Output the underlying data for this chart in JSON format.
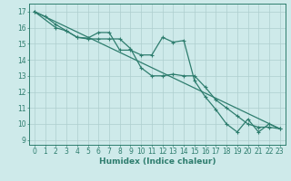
{
  "line_straight": {
    "x": [
      0,
      23
    ],
    "y": [
      17.0,
      9.7
    ],
    "color": "#2e7d6e",
    "marker": "None",
    "markersize": 0,
    "linewidth": 0.9
  },
  "line_upper": {
    "x": [
      0,
      1,
      2,
      3,
      4,
      5,
      6,
      7,
      8,
      9,
      10,
      11,
      12,
      13,
      14,
      15,
      16,
      17,
      18,
      19,
      20,
      21,
      22,
      23
    ],
    "y": [
      17.0,
      16.7,
      16.2,
      15.8,
      15.4,
      15.35,
      15.7,
      15.7,
      14.6,
      14.6,
      14.3,
      14.3,
      15.4,
      15.1,
      15.2,
      12.7,
      11.7,
      10.9,
      10.0,
      9.5,
      10.3,
      9.5,
      10.0,
      9.7
    ],
    "color": "#2e7d6e",
    "marker": "+",
    "markersize": 3.5,
    "linewidth": 0.9
  },
  "line_lower": {
    "x": [
      0,
      2,
      3,
      4,
      5,
      6,
      7,
      8,
      9,
      10,
      11,
      12,
      13,
      14,
      15,
      16,
      17,
      18,
      19,
      20,
      21,
      22,
      23
    ],
    "y": [
      17.0,
      16.0,
      15.8,
      15.4,
      15.3,
      15.3,
      15.3,
      15.3,
      14.7,
      13.5,
      13.0,
      13.0,
      13.1,
      13.0,
      13.0,
      12.3,
      11.5,
      11.0,
      10.5,
      10.0,
      9.8,
      9.8,
      9.7
    ],
    "color": "#2e7d6e",
    "marker": "+",
    "markersize": 3.5,
    "linewidth": 0.9
  },
  "background_color": "#ceeaea",
  "grid_color": "#aecece",
  "axes_color": "#2e7d6e",
  "xlabel": "Humidex (Indice chaleur)",
  "xlim": [
    -0.5,
    23.5
  ],
  "ylim": [
    8.7,
    17.5
  ],
  "yticks": [
    9,
    10,
    11,
    12,
    13,
    14,
    15,
    16,
    17
  ],
  "xticks": [
    0,
    1,
    2,
    3,
    4,
    5,
    6,
    7,
    8,
    9,
    10,
    11,
    12,
    13,
    14,
    15,
    16,
    17,
    18,
    19,
    20,
    21,
    22,
    23
  ],
  "tick_fontsize": 5.5,
  "xlabel_fontsize": 6.5
}
